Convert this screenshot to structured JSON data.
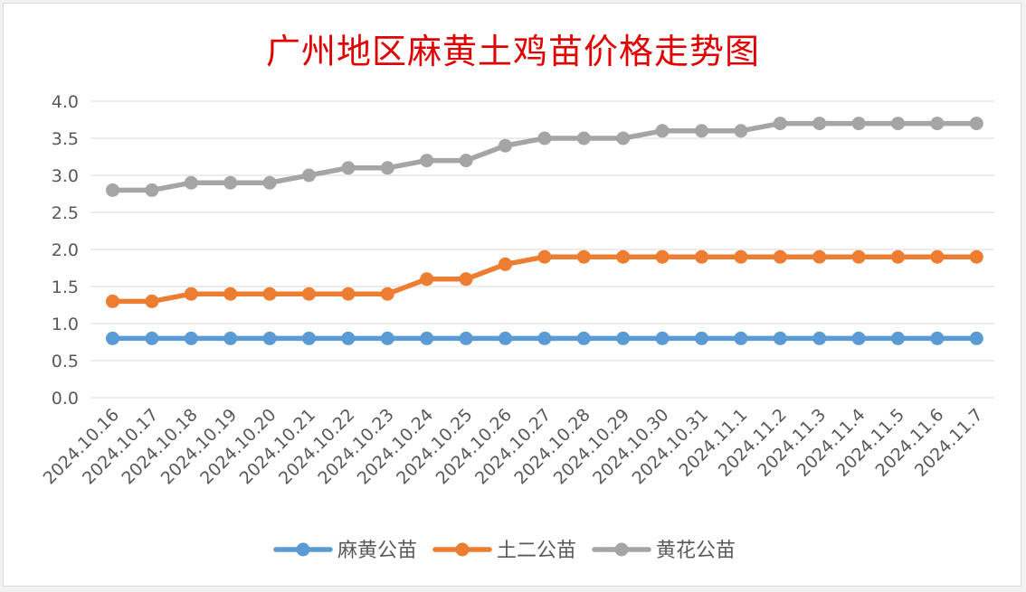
{
  "chart_data": {
    "type": "line",
    "title": "广州地区麻黄土鸡苗价格走势图",
    "xlabel": "",
    "ylabel": "",
    "categories": [
      "2024.10.16",
      "2024.10.17",
      "2024.10.18",
      "2024.10.19",
      "2024.10.20",
      "2024.10.21",
      "2024.10.22",
      "2024.10.23",
      "2024.10.24",
      "2024.10.25",
      "2024.10.26",
      "2024.10.27",
      "2024.10.28",
      "2024.10.29",
      "2024.10.30",
      "2024.10.31",
      "2024.11.1",
      "2024.11.2",
      "2024.11.3",
      "2024.11.4",
      "2024.11.5",
      "2024.11.6",
      "2024.11.7"
    ],
    "ylim": [
      0,
      4
    ],
    "yticks": [
      "0.0",
      "0.5",
      "1.0",
      "1.5",
      "2.0",
      "2.5",
      "3.0",
      "3.5",
      "4.0"
    ],
    "grid": true,
    "legend_position": "bottom",
    "series": [
      {
        "name": "麻黄公苗",
        "color": "#5b9bd5",
        "values": [
          0.8,
          0.8,
          0.8,
          0.8,
          0.8,
          0.8,
          0.8,
          0.8,
          0.8,
          0.8,
          0.8,
          0.8,
          0.8,
          0.8,
          0.8,
          0.8,
          0.8,
          0.8,
          0.8,
          0.8,
          0.8,
          0.8,
          0.8
        ]
      },
      {
        "name": "土二公苗",
        "color": "#ed7d31",
        "values": [
          1.3,
          1.3,
          1.4,
          1.4,
          1.4,
          1.4,
          1.4,
          1.4,
          1.6,
          1.6,
          1.8,
          1.9,
          1.9,
          1.9,
          1.9,
          1.9,
          1.9,
          1.9,
          1.9,
          1.9,
          1.9,
          1.9,
          1.9
        ]
      },
      {
        "name": "黄花公苗",
        "color": "#a5a5a5",
        "values": [
          2.8,
          2.8,
          2.9,
          2.9,
          2.9,
          3.0,
          3.1,
          3.1,
          3.2,
          3.2,
          3.4,
          3.5,
          3.5,
          3.5,
          3.6,
          3.6,
          3.6,
          3.7,
          3.7,
          3.7,
          3.7,
          3.7,
          3.7
        ]
      }
    ]
  }
}
